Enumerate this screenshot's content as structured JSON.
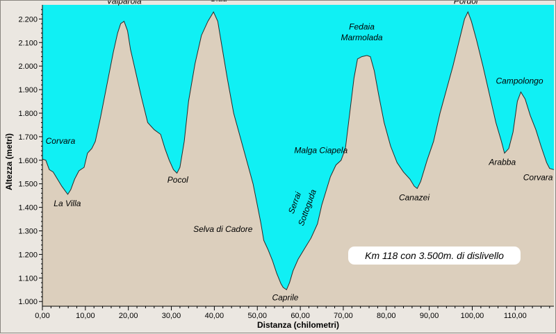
{
  "chart_data": {
    "type": "area",
    "xlabel": "Distanza (chilometri)",
    "ylabel": "Altezza (metri)",
    "xlim": [
      0,
      119
    ],
    "ylim": [
      980,
      2260
    ],
    "x_ticks": [
      {
        "value": 0,
        "label": "0,00"
      },
      {
        "value": 10,
        "label": "10,00"
      },
      {
        "value": 20,
        "label": "20,00"
      },
      {
        "value": 30,
        "label": "30,00"
      },
      {
        "value": 40,
        "label": "40,00"
      },
      {
        "value": 50,
        "label": "50,00"
      },
      {
        "value": 60,
        "label": "60,00"
      },
      {
        "value": 70,
        "label": "70,00"
      },
      {
        "value": 80,
        "label": "80,00"
      },
      {
        "value": 90,
        "label": "90,00"
      },
      {
        "value": 100,
        "label": "100,00"
      },
      {
        "value": 110,
        "label": "110,00"
      }
    ],
    "y_ticks": [
      {
        "value": 1000,
        "label": "1.000"
      },
      {
        "value": 1100,
        "label": "1.100"
      },
      {
        "value": 1200,
        "label": "1.200"
      },
      {
        "value": 1300,
        "label": "1.300"
      },
      {
        "value": 1400,
        "label": "1.400"
      },
      {
        "value": 1500,
        "label": "1.500"
      },
      {
        "value": 1600,
        "label": "1.600"
      },
      {
        "value": 1700,
        "label": "1.700"
      },
      {
        "value": 1800,
        "label": "1.800"
      },
      {
        "value": 1900,
        "label": "1.900"
      },
      {
        "value": 2000,
        "label": "2.000"
      },
      {
        "value": 2100,
        "label": "2.100"
      },
      {
        "value": 2200,
        "label": "2.200"
      }
    ],
    "grid": false,
    "colors": {
      "sky": "#10f0f4",
      "terrain": "#dccfbd",
      "profile_line": "#2a2a2a",
      "axis": "#000000",
      "note_box": "#ffffff"
    },
    "profile": {
      "x": [
        0,
        0.8,
        1.6,
        2.5,
        3.5,
        4.5,
        5.3,
        5.9,
        6.6,
        7.5,
        8.5,
        9.7,
        10.5,
        11.5,
        12.3,
        13.5,
        15,
        16.5,
        17.5,
        18.2,
        19,
        19.8,
        20.5,
        21.5,
        23,
        24.5,
        26,
        27.5,
        28.5,
        29.5,
        30.5,
        31.3,
        32,
        33,
        34,
        35.5,
        37,
        38.5,
        39.8,
        40.8,
        41.8,
        43,
        44.5,
        46,
        47.5,
        49,
        50,
        50.8,
        51.5,
        52.5,
        53.5,
        54.5,
        55.5,
        56,
        56.8,
        57.5,
        58.3,
        59.5,
        61,
        62.5,
        64,
        65,
        66,
        67,
        68.3,
        69.5,
        70.5,
        71.5,
        72.5,
        73.3,
        74.3,
        75.5,
        76.3,
        77.2,
        78.2,
        79.5,
        81,
        82.5,
        84,
        85.5,
        86.5,
        87.2,
        88,
        89.5,
        91,
        92.5,
        94,
        95.5,
        97,
        98.2,
        99,
        99.8,
        101,
        102.5,
        104,
        105.5,
        106.8,
        107.5,
        108.5,
        109.5,
        110.5,
        111.3,
        112.3,
        113.5,
        114.8,
        116,
        117.3,
        118,
        119
      ],
      "y": [
        1605,
        1600,
        1560,
        1550,
        1520,
        1490,
        1470,
        1455,
        1475,
        1520,
        1555,
        1570,
        1630,
        1650,
        1680,
        1780,
        1920,
        2060,
        2140,
        2180,
        2190,
        2150,
        2070,
        1990,
        1870,
        1760,
        1730,
        1710,
        1650,
        1600,
        1560,
        1545,
        1570,
        1680,
        1850,
        2010,
        2130,
        2190,
        2230,
        2190,
        2080,
        1950,
        1800,
        1700,
        1600,
        1500,
        1410,
        1335,
        1260,
        1220,
        1175,
        1120,
        1075,
        1060,
        1050,
        1080,
        1130,
        1180,
        1225,
        1270,
        1330,
        1410,
        1470,
        1530,
        1580,
        1600,
        1650,
        1800,
        1950,
        2030,
        2040,
        2045,
        2040,
        1980,
        1880,
        1760,
        1660,
        1590,
        1550,
        1520,
        1490,
        1480,
        1510,
        1600,
        1680,
        1800,
        1900,
        2000,
        2110,
        2200,
        2230,
        2190,
        2110,
        2000,
        1880,
        1760,
        1680,
        1630,
        1650,
        1720,
        1850,
        1890,
        1860,
        1790,
        1730,
        1660,
        1590,
        1565,
        1560
      ]
    },
    "annotations": [
      {
        "text": "Corvara",
        "x": 4.2,
        "y": 1670
      },
      {
        "text": "La Villa",
        "x": 5.8,
        "y": 1405
      },
      {
        "text": "Valparola",
        "x": 19,
        "y": 2265
      },
      {
        "text": "Pocol",
        "x": 31.5,
        "y": 1505
      },
      {
        "text": "Giau",
        "x": 41,
        "y": 2275
      },
      {
        "text": "Selva di Cadore",
        "x": 42,
        "y": 1295
      },
      {
        "text": "Caprile",
        "x": 56.5,
        "y": 1005
      },
      {
        "text": "Malga Ciapela",
        "x": 64.8,
        "y": 1630
      },
      {
        "text": "Serrai",
        "x": 59.3,
        "y": 1415,
        "rotate": -70
      },
      {
        "text": "Sottoguda",
        "x": 62.2,
        "y": 1395,
        "rotate": -70
      },
      {
        "text": "Fedaia",
        "x": 74.3,
        "y": 2155
      },
      {
        "text": "Marmolada",
        "x": 74.3,
        "y": 2110
      },
      {
        "text": "Canazei",
        "x": 86.5,
        "y": 1430
      },
      {
        "text": "Pordoi",
        "x": 98.5,
        "y": 2265
      },
      {
        "text": "Campolongo",
        "x": 111,
        "y": 1925
      },
      {
        "text": "Arabba",
        "x": 107,
        "y": 1580
      },
      {
        "text": "Corvara",
        "x": 115.3,
        "y": 1515
      }
    ],
    "note": "Km 118 con 3.500m. di dislivello"
  }
}
